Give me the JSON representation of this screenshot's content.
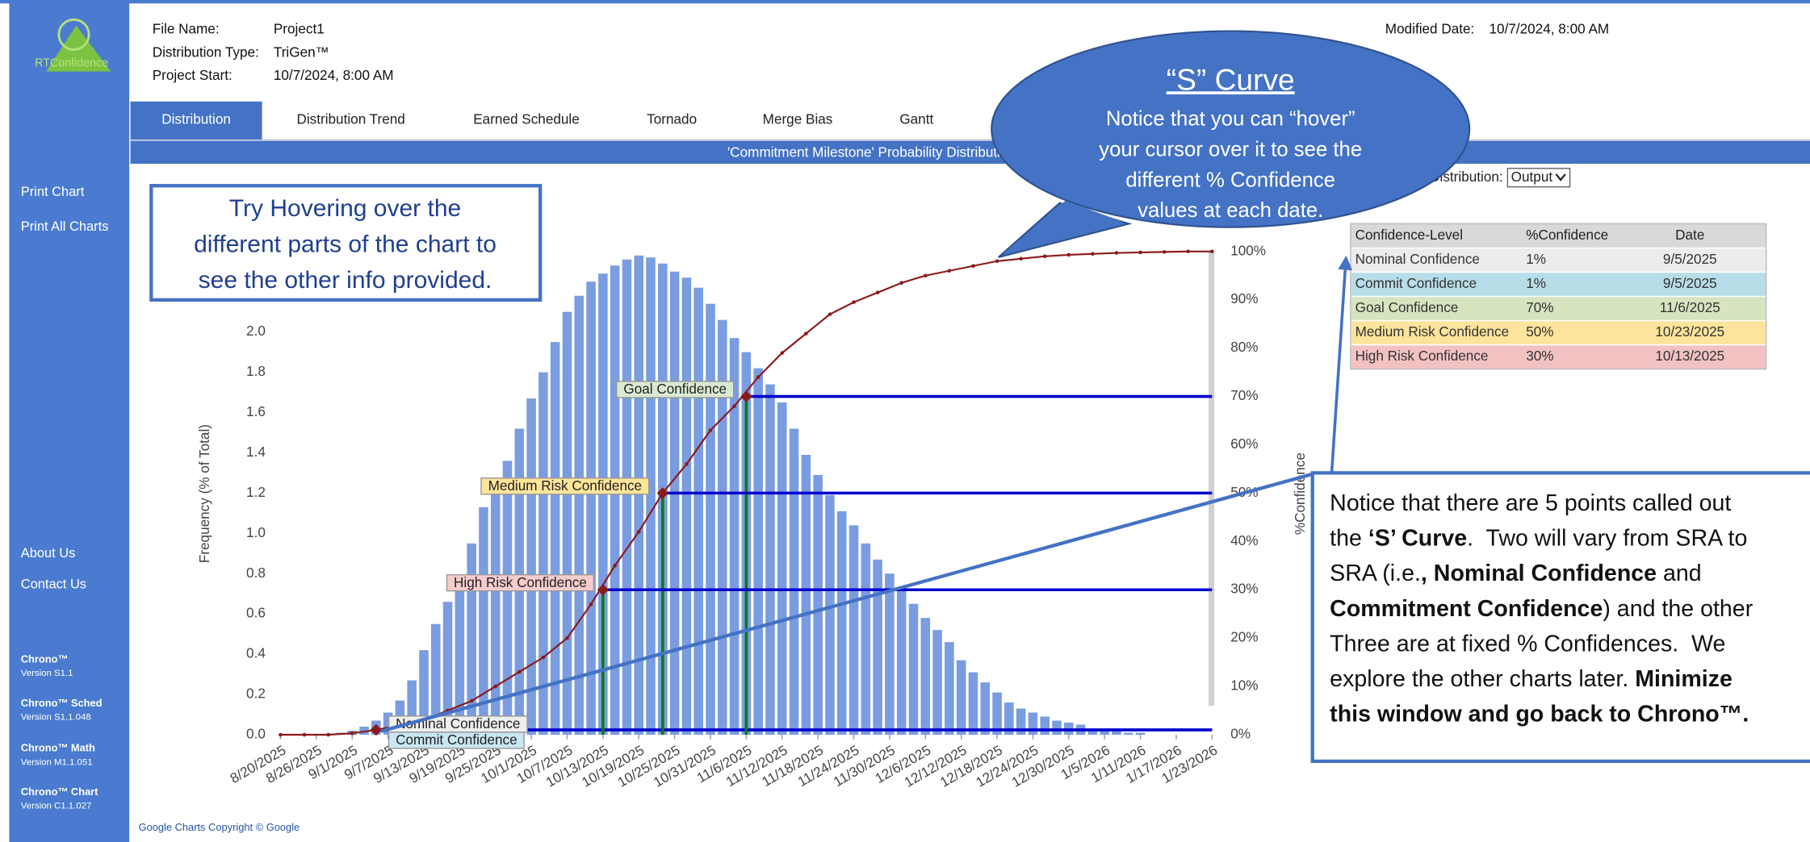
{
  "sidebar": {
    "logo": "RTConfidence",
    "links": [
      "Print Chart",
      "Print All Charts"
    ],
    "about": [
      "About Us",
      "Contact Us"
    ],
    "versions": [
      {
        "name": "Chrono™",
        "version": "Version S1.1"
      },
      {
        "name": "Chrono™ Sched",
        "version": "Version S1.1.048"
      },
      {
        "name": "Chrono™ Math",
        "version": "Version M1.1.051"
      },
      {
        "name": "Chrono™ Chart",
        "version": "Version C1.1.027"
      }
    ]
  },
  "header": {
    "fields": [
      {
        "label": "File Name:",
        "value": "Project1"
      },
      {
        "label": "Distribution Type:",
        "value": "TriGen™"
      },
      {
        "label": "Project Start:",
        "value": "10/7/2024, 8:00 AM"
      }
    ],
    "modified": {
      "label": "Modified Date:",
      "value": "10/7/2024, 8:00 AM"
    }
  },
  "tabs": [
    "Distribution",
    "Distribution Trend",
    "Earned Schedule",
    "Tornado",
    "Merge Bias",
    "Gantt"
  ],
  "active_tab": 0,
  "banner": "'Commitment Milestone' Probability Distribution",
  "distribution_select": {
    "label": "Distribution:",
    "value": "Output"
  },
  "table": {
    "header": [
      "Confidence-Level",
      "%Confidence",
      "Date"
    ],
    "rows": [
      [
        "Nominal Confidence",
        "1%",
        "9/5/2025"
      ],
      [
        "Commit Confidence",
        "1%",
        "9/5/2025"
      ],
      [
        "Goal Confidence",
        "70%",
        "11/6/2025"
      ],
      [
        "Medium Risk Confidence",
        "50%",
        "10/23/2025"
      ],
      [
        "High Risk Confidence",
        "30%",
        "10/13/2025"
      ]
    ],
    "row_colors": [
      "#ececec",
      "#b7dde8",
      "#d6e4bf",
      "#fde49c",
      "#f2c2c2"
    ]
  },
  "chart_data": {
    "type": "bar",
    "x": [
      10,
      12,
      14,
      16,
      18,
      20,
      22,
      24,
      26,
      28,
      30,
      32,
      34,
      36,
      38,
      40,
      42,
      44,
      46,
      48,
      50,
      52,
      54,
      56,
      58,
      60,
      62,
      64,
      66,
      68,
      70,
      72,
      74,
      76,
      78,
      80,
      82,
      84,
      86,
      88,
      90,
      92,
      94,
      96,
      98,
      100,
      102,
      104,
      106,
      108,
      110,
      112,
      114,
      116,
      118,
      120,
      122,
      124,
      126,
      128,
      130,
      132,
      134,
      136,
      138,
      140,
      142,
      144
    ],
    "values": [
      0.01,
      0.02,
      0.04,
      0.07,
      0.11,
      0.17,
      0.27,
      0.42,
      0.55,
      0.66,
      0.78,
      0.95,
      1.13,
      1.25,
      1.36,
      1.52,
      1.67,
      1.8,
      1.95,
      2.1,
      2.18,
      2.25,
      2.29,
      2.33,
      2.36,
      2.38,
      2.37,
      2.34,
      2.3,
      2.27,
      2.22,
      2.14,
      2.06,
      1.97,
      1.9,
      1.82,
      1.74,
      1.65,
      1.52,
      1.39,
      1.29,
      1.19,
      1.11,
      1.04,
      0.95,
      0.87,
      0.8,
      0.73,
      0.65,
      0.58,
      0.52,
      0.46,
      0.37,
      0.31,
      0.26,
      0.21,
      0.16,
      0.13,
      0.11,
      0.09,
      0.07,
      0.06,
      0.05,
      0.03,
      0.02,
      0.02,
      0.01,
      0.01
    ],
    "color": "#7a9ce0",
    "line": {
      "axis": "y2",
      "color": "#8b1a1a",
      "x": [
        0,
        4,
        8,
        12,
        16,
        20,
        24,
        28,
        32,
        36,
        40,
        44,
        48,
        52,
        56,
        60,
        64,
        68,
        72,
        76,
        80,
        84,
        88,
        92,
        96,
        100,
        104,
        108,
        112,
        116,
        120,
        124,
        128,
        132,
        136,
        140,
        144,
        148,
        152,
        156
      ],
      "values": [
        0,
        0,
        0,
        0.3,
        1,
        2,
        3,
        5,
        7,
        10,
        13,
        16,
        20,
        27,
        35,
        42,
        50,
        56,
        63,
        68,
        74,
        79,
        83,
        87,
        89.5,
        91.5,
        93.5,
        95,
        96,
        97,
        98,
        98.5,
        99,
        99.3,
        99.5,
        99.7,
        99.8,
        99.9,
        100,
        100
      ]
    },
    "points": [
      {
        "label": "Nominal Confidence",
        "x": 16,
        "y": 1,
        "color": "#eeeeee"
      },
      {
        "label": "Commit Confidence",
        "x": 16,
        "y": 1,
        "color": "#c9e7f2"
      },
      {
        "label": "Goal Confidence",
        "x": 78,
        "y": 70,
        "color": "#d9ead3"
      },
      {
        "label": "Medium Risk Confidence",
        "x": 64,
        "y": 50,
        "color": "#ffe599"
      },
      {
        "label": "High Risk Confidence",
        "x": 54,
        "y": 30,
        "color": "#f4cccc"
      }
    ],
    "guide_color": "#0000cc",
    "drop_color": "#0a7d0a",
    "ylabel": "Frequency (% of Total)",
    "y2label": "%Confidence",
    "xlim": [
      0,
      156
    ],
    "ylim": [
      0,
      2.4
    ],
    "y2lim": [
      0,
      100
    ],
    "xticks": [
      {
        "value": 0,
        "label": "8/20/2025"
      },
      {
        "value": 6,
        "label": "8/26/2025"
      },
      {
        "value": 12,
        "label": "9/1/2025"
      },
      {
        "value": 18,
        "label": "9/7/2025"
      },
      {
        "value": 24,
        "label": "9/13/2025"
      },
      {
        "value": 30,
        "label": "9/19/2025"
      },
      {
        "value": 36,
        "label": "9/25/2025"
      },
      {
        "value": 42,
        "label": "10/1/2025"
      },
      {
        "value": 48,
        "label": "10/7/2025"
      },
      {
        "value": 54,
        "label": "10/13/2025"
      },
      {
        "value": 60,
        "label": "10/19/2025"
      },
      {
        "value": 66,
        "label": "10/25/2025"
      },
      {
        "value": 72,
        "label": "10/31/2025"
      },
      {
        "value": 78,
        "label": "11/6/2025"
      },
      {
        "value": 84,
        "label": "11/12/2025"
      },
      {
        "value": 90,
        "label": "11/18/2025"
      },
      {
        "value": 96,
        "label": "11/24/2025"
      },
      {
        "value": 102,
        "label": "11/30/2025"
      },
      {
        "value": 108,
        "label": "12/6/2025"
      },
      {
        "value": 114,
        "label": "12/12/2025"
      },
      {
        "value": 120,
        "label": "12/18/2025"
      },
      {
        "value": 126,
        "label": "12/24/2025"
      },
      {
        "value": 132,
        "label": "12/30/2025"
      },
      {
        "value": 138,
        "label": "1/5/2026"
      },
      {
        "value": 144,
        "label": "1/11/2026"
      },
      {
        "value": 150,
        "label": "1/17/2026"
      },
      {
        "value": 156,
        "label": "1/23/2026"
      }
    ],
    "yticks": [
      {
        "value": 0,
        "label": "0.0"
      },
      0.2,
      0.4,
      0.6,
      0.8,
      {
        "value": 1,
        "label": "1.0"
      },
      1.2,
      1.4,
      1.6,
      1.8,
      {
        "value": 2,
        "label": "2.0"
      }
    ],
    "y2ticks": [
      {
        "value": 0,
        "label": "0%"
      },
      {
        "value": 10,
        "label": "10%"
      },
      {
        "value": 20,
        "label": "20%"
      },
      {
        "value": 30,
        "label": "30%"
      },
      {
        "value": 40,
        "label": "40%"
      },
      {
        "value": 50,
        "label": "50%"
      },
      {
        "value": 60,
        "label": "60%"
      },
      {
        "value": 70,
        "label": "70%"
      },
      {
        "value": 80,
        "label": "80%"
      },
      {
        "value": 90,
        "label": "90%"
      },
      {
        "value": 100,
        "label": "100%"
      }
    ]
  },
  "callouts": {
    "hover": {
      "lines": [
        "Try Hovering over the",
        "different parts of the chart to",
        "see the other info provided."
      ]
    },
    "s_curve": {
      "title": "“S” Curve",
      "lines": [
        "Notice that you can “hover”",
        "your cursor over it to see the",
        "different % Confidence",
        "values at each date."
      ]
    },
    "points_note": {
      "lines": [
        [
          {
            "text": "Notice that there are 5 points called out"
          }
        ],
        [
          {
            "text": "the "
          },
          {
            "text": "‘S’ Curve",
            "bold": true
          },
          {
            "text": ".  Two will vary from SRA to"
          }
        ],
        [
          {
            "text": "SRA (i.e."
          },
          {
            "text": ", Nominal Confidence",
            "bold": true
          },
          {
            "text": " and"
          }
        ],
        [
          {
            "text": "Commitment Confidence",
            "bold": true
          },
          {
            "text": ") and the other"
          }
        ],
        [
          {
            "text": "Three are at fixed % Confidences.  We"
          }
        ],
        [
          {
            "text": "explore the other charts later. "
          },
          {
            "text": "Minimize",
            "bold": true
          }
        ],
        [
          {
            "text": "this window and go back to Chrono™.",
            "bold": true
          }
        ]
      ]
    }
  },
  "footer": "Google Charts Copyright © Google"
}
